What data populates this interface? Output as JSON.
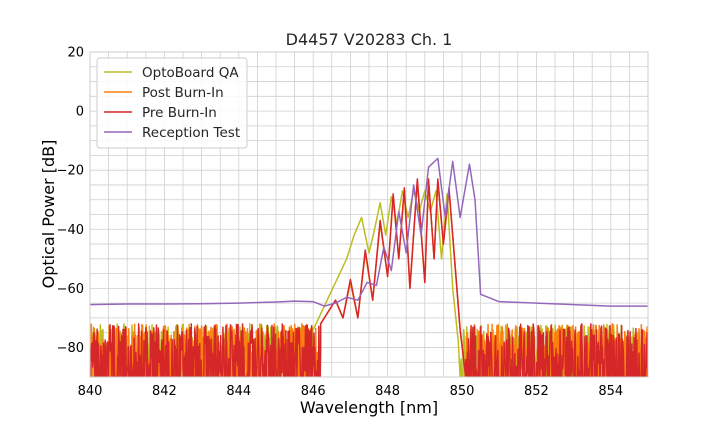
{
  "chart_data": {
    "type": "line",
    "title": "D4457 V20283 Ch. 1",
    "xlabel": "Wavelength [nm]",
    "ylabel": "Optical Power [dB]",
    "xlim": [
      840,
      855
    ],
    "ylim": [
      -90,
      20
    ],
    "xticks": [
      "840",
      "842",
      "844",
      "846",
      "848",
      "850",
      "852",
      "854"
    ],
    "yticks": [
      "20",
      "0",
      "−20",
      "−40",
      "−60",
      "−80"
    ],
    "grid": true,
    "minor_grid": true,
    "legend": "top-left",
    "noise_floor": [
      -90,
      -72
    ],
    "series": [
      {
        "name": "OptoBoard QA",
        "color": "#bcbd22",
        "noisy_below": 846.0,
        "noisy_above": 849.95,
        "x": [
          845.8,
          846.0,
          846.3,
          846.6,
          846.9,
          847.1,
          847.3,
          847.5,
          847.65,
          847.8,
          847.95,
          848.1,
          848.25,
          848.4,
          848.55,
          848.7,
          848.85,
          849.0,
          849.15,
          849.3,
          849.45,
          849.6,
          849.75,
          849.9,
          849.95
        ],
        "y": [
          -90,
          -74,
          -66,
          -58,
          -50,
          -42,
          -36,
          -48,
          -40,
          -31,
          -42,
          -29,
          -38,
          -27,
          -36,
          -27,
          -34,
          -27,
          -34,
          -27,
          -50,
          -28,
          -60,
          -78,
          -90
        ]
      },
      {
        "name": "Post Burn-In",
        "color": "#ff7f0e",
        "noisy_below": 846.2,
        "noisy_above": 850.1,
        "x": [
          846.2,
          846.4,
          846.6,
          846.8,
          847.0,
          847.2,
          847.4,
          847.6,
          847.8,
          848.0,
          848.15,
          848.3,
          848.45,
          848.6,
          848.8,
          849.0,
          849.1,
          849.25,
          849.35,
          849.5,
          849.65,
          849.8,
          849.95,
          850.1
        ],
        "y": [
          -72,
          -68,
          -64,
          -70,
          -58,
          -70,
          -48,
          -64,
          -38,
          -56,
          -29,
          -50,
          -27,
          -60,
          -24,
          -58,
          -24,
          -50,
          -24,
          -45,
          -27,
          -50,
          -74,
          -90
        ]
      },
      {
        "name": "Pre Burn-In",
        "color": "#d62728",
        "noisy_below": 846.2,
        "noisy_above": 850.1,
        "x": [
          846.2,
          846.4,
          846.6,
          846.8,
          847.0,
          847.2,
          847.4,
          847.6,
          847.8,
          848.0,
          848.15,
          848.3,
          848.45,
          848.6,
          848.8,
          849.0,
          849.1,
          849.25,
          849.35,
          849.5,
          849.65,
          849.8,
          849.95,
          850.1
        ],
        "y": [
          -72,
          -68,
          -64,
          -70,
          -57,
          -70,
          -47,
          -64,
          -37,
          -56,
          -28,
          -50,
          -26,
          -60,
          -23,
          -58,
          -23,
          -50,
          -23,
          -45,
          -26,
          -50,
          -74,
          -90
        ]
      },
      {
        "name": "Reception Test",
        "color": "#9467bd",
        "noisy_below": null,
        "noisy_above": null,
        "x": [
          840,
          841,
          842,
          843,
          844,
          845,
          845.5,
          846,
          846.3,
          846.6,
          846.9,
          847.2,
          847.45,
          847.7,
          847.9,
          848.1,
          848.3,
          848.5,
          848.7,
          848.9,
          849.1,
          849.35,
          849.55,
          849.75,
          849.95,
          850.2,
          850.35,
          850.5,
          851,
          852,
          853,
          854,
          855
        ],
        "y": [
          -65.5,
          -65.3,
          -65.3,
          -65.2,
          -65.0,
          -64.6,
          -64.3,
          -64.5,
          -66,
          -65,
          -63,
          -64,
          -58,
          -59,
          -46,
          -54,
          -34,
          -48,
          -25,
          -42,
          -19,
          -16,
          -36,
          -17,
          -36,
          -18,
          -30,
          -62,
          -64.5,
          -65,
          -65.5,
          -66,
          -66
        ]
      }
    ]
  }
}
